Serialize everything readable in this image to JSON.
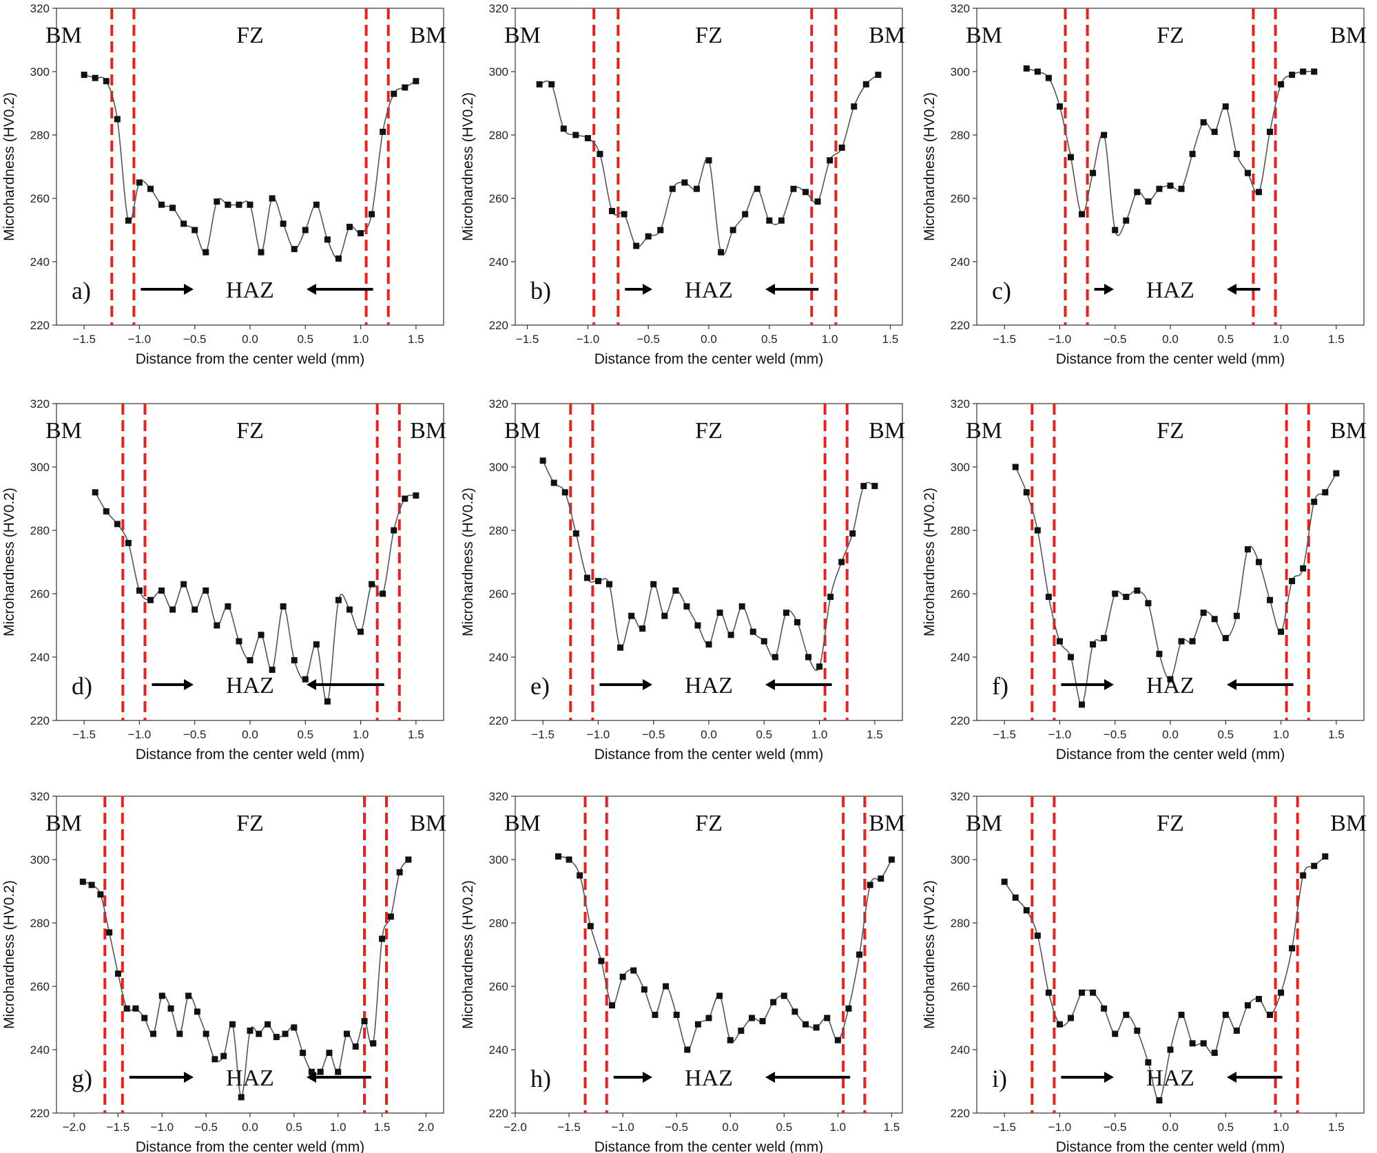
{
  "chart_data": [
    {
      "panel": "a)",
      "type": "line",
      "xlabel": "Distance from the center weld (mm)",
      "ylabel": "Microhardness (HV0.2)",
      "xlim": [
        -1.75,
        1.75
      ],
      "ylim": [
        220,
        320
      ],
      "xticks": [
        -1.5,
        -1.0,
        -0.5,
        0.0,
        0.5,
        1.0,
        1.5
      ],
      "yticks": [
        220,
        240,
        260,
        280,
        300,
        320
      ],
      "boundaries": [
        -1.25,
        -1.05,
        1.05,
        1.25
      ],
      "labels": {
        "left": "BM",
        "center": "FZ",
        "right": "BM",
        "haz": "HAZ"
      },
      "series": [
        {
          "name": "Microhardness",
          "x": [
            -1.5,
            -1.4,
            -1.3,
            -1.2,
            -1.1,
            -1.0,
            -0.9,
            -0.8,
            -0.7,
            -0.6,
            -0.5,
            -0.4,
            -0.3,
            -0.2,
            -0.1,
            0.0,
            0.1,
            0.2,
            0.3,
            0.4,
            0.5,
            0.6,
            0.7,
            0.8,
            0.9,
            1.0,
            1.1,
            1.2,
            1.3,
            1.4,
            1.5
          ],
          "y": [
            299,
            298,
            297,
            285,
            253,
            265,
            263,
            258,
            257,
            252,
            250,
            243,
            259,
            258,
            258,
            258,
            243,
            260,
            252,
            244,
            250,
            258,
            247,
            241,
            251,
            249,
            255,
            281,
            293,
            295,
            297
          ]
        }
      ]
    },
    {
      "panel": "b)",
      "type": "line",
      "xlabel": "Distance from the center weld (mm)",
      "ylabel": "Microhardness (HV0.2)",
      "xlim": [
        -1.6,
        1.6
      ],
      "ylim": [
        220,
        320
      ],
      "xticks": [
        -1.5,
        -1.0,
        -0.5,
        0.0,
        0.5,
        1.0,
        1.5
      ],
      "yticks": [
        220,
        240,
        260,
        280,
        300,
        320
      ],
      "boundaries": [
        -0.95,
        -0.75,
        0.85,
        1.05
      ],
      "labels": {
        "left": "BM",
        "center": "FZ",
        "right": "BM",
        "haz": "HAZ"
      },
      "series": [
        {
          "name": "Microhardness",
          "x": [
            -1.4,
            -1.3,
            -1.2,
            -1.1,
            -1.0,
            -0.9,
            -0.8,
            -0.7,
            -0.6,
            -0.5,
            -0.4,
            -0.3,
            -0.2,
            -0.1,
            0.0,
            0.1,
            0.2,
            0.3,
            0.4,
            0.5,
            0.6,
            0.7,
            0.8,
            0.9,
            1.0,
            1.1,
            1.2,
            1.3,
            1.4
          ],
          "y": [
            296,
            296,
            282,
            280,
            279,
            274,
            256,
            255,
            245,
            248,
            250,
            263,
            265,
            263,
            272,
            243,
            250,
            255,
            263,
            253,
            253,
            263,
            262,
            259,
            272,
            276,
            289,
            296,
            299
          ]
        }
      ]
    },
    {
      "panel": "c)",
      "type": "line",
      "xlabel": "Distance from the center weld (mm)",
      "ylabel": "Microhardness (HV0.2)",
      "xlim": [
        -1.75,
        1.75
      ],
      "ylim": [
        220,
        320
      ],
      "xticks": [
        -1.5,
        -1.0,
        -0.5,
        0.0,
        0.5,
        1.0,
        1.5
      ],
      "yticks": [
        220,
        240,
        260,
        280,
        300,
        320
      ],
      "boundaries": [
        -0.95,
        -0.75,
        0.75,
        0.95
      ],
      "labels": {
        "left": "BM",
        "center": "FZ",
        "right": "BM",
        "haz": "HAZ"
      },
      "series": [
        {
          "name": "Microhardness",
          "x": [
            -1.3,
            -1.2,
            -1.1,
            -1.0,
            -0.9,
            -0.8,
            -0.7,
            -0.6,
            -0.5,
            -0.4,
            -0.3,
            -0.2,
            -0.1,
            0.0,
            0.1,
            0.2,
            0.3,
            0.4,
            0.5,
            0.6,
            0.7,
            0.8,
            0.9,
            1.0,
            1.1,
            1.2,
            1.3
          ],
          "y": [
            301,
            300,
            298,
            289,
            273,
            255,
            268,
            280,
            250,
            253,
            262,
            259,
            263,
            264,
            263,
            274,
            284,
            281,
            289,
            274,
            268,
            262,
            281,
            296,
            299,
            300,
            300
          ]
        }
      ]
    },
    {
      "panel": "d)",
      "type": "line",
      "xlabel": "Distance from the center weld (mm)",
      "ylabel": "Microhardness (HV0.2)",
      "xlim": [
        -1.75,
        1.75
      ],
      "ylim": [
        220,
        320
      ],
      "xticks": [
        -1.5,
        -1.0,
        -0.5,
        0.0,
        0.5,
        1.0,
        1.5
      ],
      "yticks": [
        220,
        240,
        260,
        280,
        300,
        320
      ],
      "boundaries": [
        -1.15,
        -0.95,
        1.15,
        1.35
      ],
      "labels": {
        "left": "BM",
        "center": "FZ",
        "right": "BM",
        "haz": "HAZ"
      },
      "series": [
        {
          "name": "Microhardness",
          "x": [
            -1.4,
            -1.3,
            -1.2,
            -1.1,
            -1.0,
            -0.9,
            -0.8,
            -0.7,
            -0.6,
            -0.5,
            -0.4,
            -0.3,
            -0.2,
            -0.1,
            0.0,
            0.1,
            0.2,
            0.3,
            0.4,
            0.5,
            0.6,
            0.7,
            0.8,
            0.9,
            1.0,
            1.1,
            1.2,
            1.3,
            1.4,
            1.5
          ],
          "y": [
            292,
            286,
            282,
            276,
            261,
            258,
            261,
            255,
            263,
            255,
            261,
            250,
            256,
            245,
            239,
            247,
            236,
            256,
            239,
            233,
            244,
            226,
            258,
            255,
            248,
            263,
            260,
            280,
            290,
            291
          ]
        }
      ]
    },
    {
      "panel": "e)",
      "type": "line",
      "xlabel": "Distance from the center weld (mm)",
      "ylabel": "Microhardness (HV0.2)",
      "xlim": [
        -1.75,
        1.75
      ],
      "ylim": [
        220,
        320
      ],
      "xticks": [
        -1.5,
        -1.0,
        -0.5,
        0.0,
        0.5,
        1.0,
        1.5
      ],
      "yticks": [
        220,
        240,
        260,
        280,
        300,
        320
      ],
      "boundaries": [
        -1.25,
        -1.05,
        1.05,
        1.25
      ],
      "labels": {
        "left": "BM",
        "center": "FZ",
        "right": "BM",
        "haz": "HAZ"
      },
      "series": [
        {
          "name": "Microhardness",
          "x": [
            -1.5,
            -1.4,
            -1.3,
            -1.2,
            -1.1,
            -1.0,
            -0.9,
            -0.8,
            -0.7,
            -0.6,
            -0.5,
            -0.4,
            -0.3,
            -0.2,
            -0.1,
            0.0,
            0.1,
            0.2,
            0.3,
            0.4,
            0.5,
            0.6,
            0.7,
            0.8,
            0.9,
            1.0,
            1.1,
            1.2,
            1.3,
            1.4,
            1.5
          ],
          "y": [
            302,
            295,
            292,
            279,
            265,
            264,
            263,
            243,
            253,
            249,
            263,
            253,
            261,
            256,
            250,
            244,
            254,
            247,
            256,
            248,
            245,
            240,
            254,
            251,
            240,
            237,
            259,
            270,
            279,
            294,
            294
          ]
        }
      ]
    },
    {
      "panel": "f)",
      "type": "line",
      "xlabel": "Distance from the center weld (mm)",
      "ylabel": "Microhardness (HV0.2)",
      "xlim": [
        -1.75,
        1.75
      ],
      "ylim": [
        220,
        320
      ],
      "xticks": [
        -1.5,
        -1.0,
        -0.5,
        0.0,
        0.5,
        1.0,
        1.5
      ],
      "yticks": [
        220,
        240,
        260,
        280,
        300,
        320
      ],
      "boundaries": [
        -1.25,
        -1.05,
        1.05,
        1.25
      ],
      "labels": {
        "left": "BM",
        "center": "FZ",
        "right": "BM",
        "haz": "HAZ"
      },
      "series": [
        {
          "name": "Microhardness",
          "x": [
            -1.4,
            -1.3,
            -1.2,
            -1.1,
            -1.0,
            -0.9,
            -0.8,
            -0.7,
            -0.6,
            -0.5,
            -0.4,
            -0.3,
            -0.2,
            -0.1,
            0.0,
            0.1,
            0.2,
            0.3,
            0.4,
            0.5,
            0.6,
            0.7,
            0.8,
            0.9,
            1.0,
            1.1,
            1.2,
            1.3,
            1.4,
            1.5
          ],
          "y": [
            300,
            292,
            280,
            259,
            245,
            240,
            225,
            244,
            246,
            260,
            259,
            261,
            257,
            241,
            233,
            245,
            245,
            254,
            252,
            246,
            253,
            274,
            270,
            258,
            248,
            264,
            268,
            289,
            292,
            298
          ]
        }
      ]
    },
    {
      "panel": "g)",
      "type": "line",
      "xlabel": "Distance from the center weld (mm)",
      "ylabel": "Microhardness (HV0.2)",
      "xlim": [
        -2.2,
        2.2
      ],
      "ylim": [
        220,
        320
      ],
      "xticks": [
        -2.0,
        -1.5,
        -1.0,
        -0.5,
        0.0,
        0.5,
        1.0,
        1.5,
        2.0
      ],
      "yticks": [
        220,
        240,
        260,
        280,
        300,
        320
      ],
      "boundaries": [
        -1.65,
        -1.45,
        1.3,
        1.55
      ],
      "labels": {
        "left": "BM",
        "center": "FZ",
        "right": "BM",
        "haz": "HAZ"
      },
      "series": [
        {
          "name": "Microhardness",
          "x": [
            -1.9,
            -1.8,
            -1.7,
            -1.6,
            -1.5,
            -1.4,
            -1.3,
            -1.2,
            -1.1,
            -1.0,
            -0.9,
            -0.8,
            -0.7,
            -0.6,
            -0.5,
            -0.4,
            -0.3,
            -0.2,
            -0.1,
            0.0,
            0.1,
            0.2,
            0.3,
            0.4,
            0.5,
            0.6,
            0.7,
            0.8,
            0.9,
            1.0,
            1.1,
            1.2,
            1.3,
            1.4,
            1.5,
            1.6,
            1.7,
            1.8
          ],
          "y": [
            293,
            292,
            289,
            277,
            264,
            253,
            253,
            250,
            245,
            257,
            253,
            245,
            257,
            252,
            245,
            237,
            238,
            248,
            225,
            246,
            245,
            248,
            244,
            245,
            247,
            239,
            233,
            233,
            239,
            233,
            245,
            241,
            249,
            242,
            275,
            282,
            296,
            300
          ]
        }
      ]
    },
    {
      "panel": "h)",
      "type": "line",
      "xlabel": "Distance from the center weld (mm)",
      "ylabel": "Microhardness (HV0.2)",
      "xlim": [
        -2.0,
        1.6
      ],
      "ylim": [
        220,
        320
      ],
      "xticks": [
        -2.0,
        -1.5,
        -1.0,
        -0.5,
        0.0,
        0.5,
        1.0,
        1.5
      ],
      "yticks": [
        220,
        240,
        260,
        280,
        300,
        320
      ],
      "boundaries": [
        -1.35,
        -1.15,
        1.05,
        1.25
      ],
      "labels": {
        "left": "BM",
        "center": "FZ",
        "right": "BM",
        "haz": "HAZ"
      },
      "series": [
        {
          "name": "Microhardness",
          "x": [
            -1.6,
            -1.5,
            -1.4,
            -1.3,
            -1.2,
            -1.1,
            -1.0,
            -0.9,
            -0.8,
            -0.7,
            -0.6,
            -0.5,
            -0.4,
            -0.3,
            -0.2,
            -0.1,
            0.0,
            0.1,
            0.2,
            0.3,
            0.4,
            0.5,
            0.6,
            0.7,
            0.8,
            0.9,
            1.0,
            1.1,
            1.2,
            1.3,
            1.4,
            1.5
          ],
          "y": [
            301,
            300,
            295,
            279,
            268,
            254,
            263,
            265,
            259,
            251,
            260,
            251,
            240,
            248,
            250,
            257,
            243,
            246,
            250,
            249,
            255,
            257,
            252,
            248,
            247,
            250,
            243,
            253,
            270,
            292,
            294,
            300
          ]
        }
      ]
    },
    {
      "panel": "i)",
      "type": "line",
      "xlabel": "Distance from the center weld (mm)",
      "ylabel": "Microhardness (HV0.2)",
      "xlim": [
        -1.75,
        1.75
      ],
      "ylim": [
        220,
        320
      ],
      "xticks": [
        -1.5,
        -1.0,
        -0.5,
        0.0,
        0.5,
        1.0,
        1.5
      ],
      "yticks": [
        220,
        240,
        260,
        280,
        300,
        320
      ],
      "boundaries": [
        -1.25,
        -1.05,
        0.95,
        1.15
      ],
      "labels": {
        "left": "BM",
        "center": "FZ",
        "right": "BM",
        "haz": "HAZ"
      },
      "series": [
        {
          "name": "Microhardness",
          "x": [
            -1.5,
            -1.4,
            -1.3,
            -1.2,
            -1.1,
            -1.0,
            -0.9,
            -0.8,
            -0.7,
            -0.6,
            -0.5,
            -0.4,
            -0.3,
            -0.2,
            -0.1,
            0.0,
            0.1,
            0.2,
            0.3,
            0.4,
            0.5,
            0.6,
            0.7,
            0.8,
            0.9,
            1.0,
            1.1,
            1.2,
            1.3,
            1.4
          ],
          "y": [
            293,
            288,
            284,
            276,
            258,
            248,
            250,
            258,
            258,
            253,
            245,
            251,
            246,
            236,
            224,
            240,
            251,
            242,
            242,
            239,
            251,
            246,
            254,
            256,
            251,
            258,
            272,
            295,
            298,
            301
          ]
        }
      ]
    }
  ]
}
